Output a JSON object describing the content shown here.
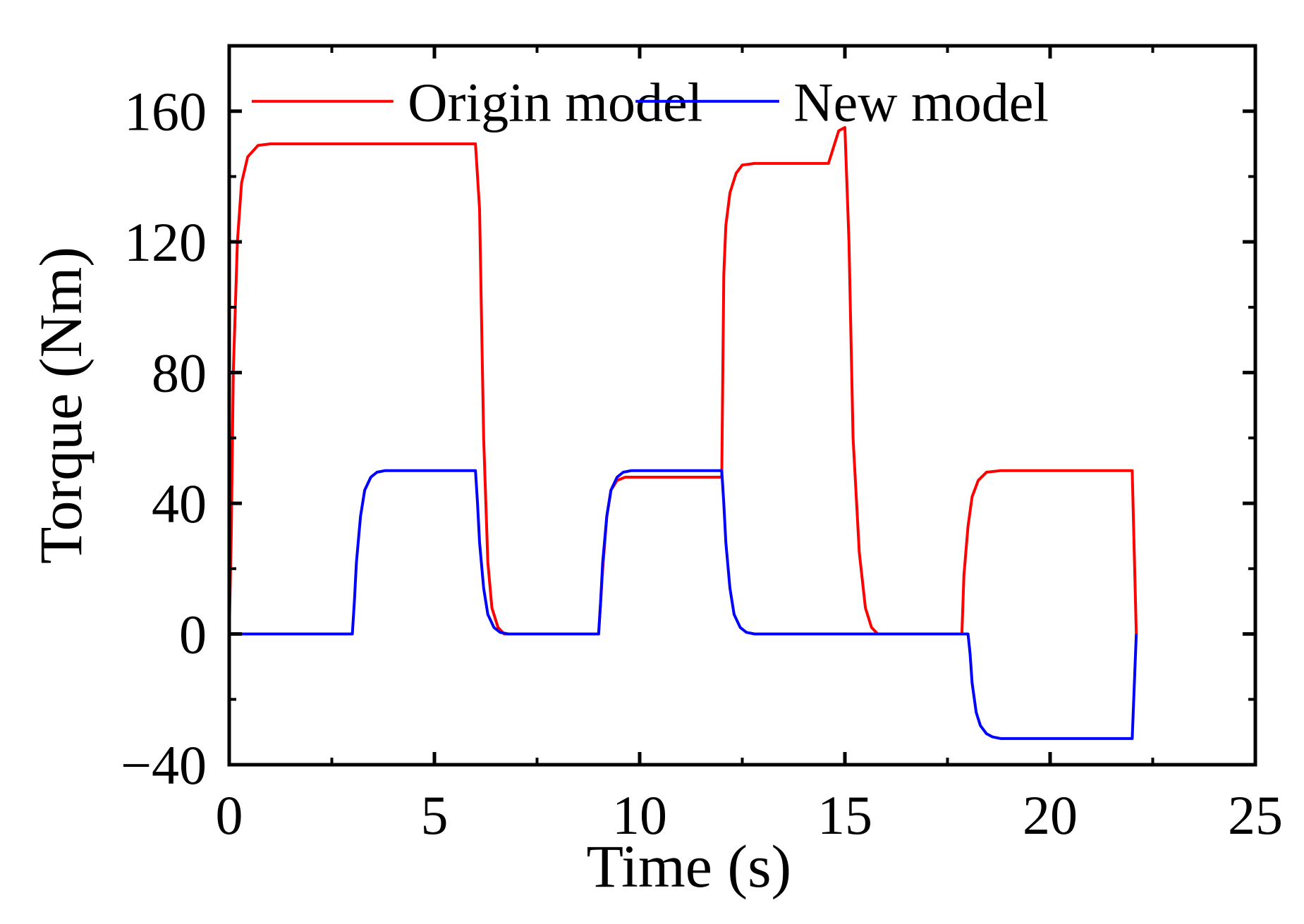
{
  "chart_data": {
    "type": "line",
    "title": "",
    "xlabel": "Time (s)",
    "ylabel": "Torque (Nm)",
    "xlim": [
      0,
      25
    ],
    "ylim": [
      -40,
      180
    ],
    "xticks": [
      0,
      5,
      10,
      15,
      20,
      25
    ],
    "xtick_labels": [
      "0",
      "5",
      "10",
      "15",
      "20",
      "25"
    ],
    "yticks": [
      -40,
      0,
      40,
      80,
      120,
      160
    ],
    "ytick_labels": [
      "−40",
      "0",
      "40",
      "80",
      "120",
      "160"
    ],
    "grid": false,
    "legend_position": "top",
    "series": [
      {
        "name": "Origin model",
        "color": "#ff0000",
        "x": [
          0,
          0.05,
          0.1,
          0.2,
          0.3,
          0.45,
          0.7,
          1.0,
          6.0,
          6.1,
          6.2,
          6.3,
          6.4,
          6.55,
          6.7,
          9.0,
          9.1,
          9.2,
          9.3,
          9.45,
          9.65,
          10.0,
          12.0,
          12.05,
          12.1,
          12.2,
          12.35,
          12.5,
          12.8,
          14.6,
          14.75,
          14.85,
          15.0,
          15.1,
          15.2,
          15.35,
          15.5,
          15.65,
          15.8,
          17.85,
          17.9,
          18.0,
          18.1,
          18.25,
          18.45,
          18.8,
          22.0,
          22.05,
          22.1
        ],
        "y": [
          0,
          30,
          80,
          120,
          138,
          146,
          149.5,
          150,
          150,
          130,
          60,
          22,
          8,
          2,
          0,
          0,
          20,
          36,
          44,
          47,
          48,
          48,
          48,
          110,
          125,
          135,
          141,
          143.5,
          144,
          144,
          150,
          154,
          155,
          120,
          60,
          25,
          8,
          2,
          0,
          0,
          18,
          33,
          42,
          47,
          49.5,
          50,
          50,
          25,
          0
        ]
      },
      {
        "name": "New model",
        "color": "#0000ff",
        "x": [
          0,
          3.0,
          3.05,
          3.1,
          3.2,
          3.3,
          3.45,
          3.6,
          3.8,
          6.0,
          6.05,
          6.1,
          6.2,
          6.3,
          6.45,
          6.6,
          6.8,
          9.0,
          9.05,
          9.1,
          9.2,
          9.3,
          9.45,
          9.6,
          9.8,
          12.0,
          12.05,
          12.1,
          12.2,
          12.3,
          12.45,
          12.6,
          12.8,
          18.0,
          18.05,
          18.1,
          18.2,
          18.3,
          18.45,
          18.6,
          18.8,
          22.0,
          22.05,
          22.1
        ],
        "y": [
          0,
          0,
          10,
          22,
          36,
          44,
          48,
          49.5,
          50,
          50,
          40,
          28,
          14,
          6,
          2,
          0.5,
          0,
          0,
          10,
          22,
          36,
          44,
          48,
          49.5,
          50,
          50,
          40,
          28,
          14,
          6,
          2,
          0.5,
          0,
          0,
          -6,
          -15,
          -24,
          -28,
          -30.5,
          -31.5,
          -32,
          -32,
          -16,
          0
        ]
      }
    ]
  }
}
